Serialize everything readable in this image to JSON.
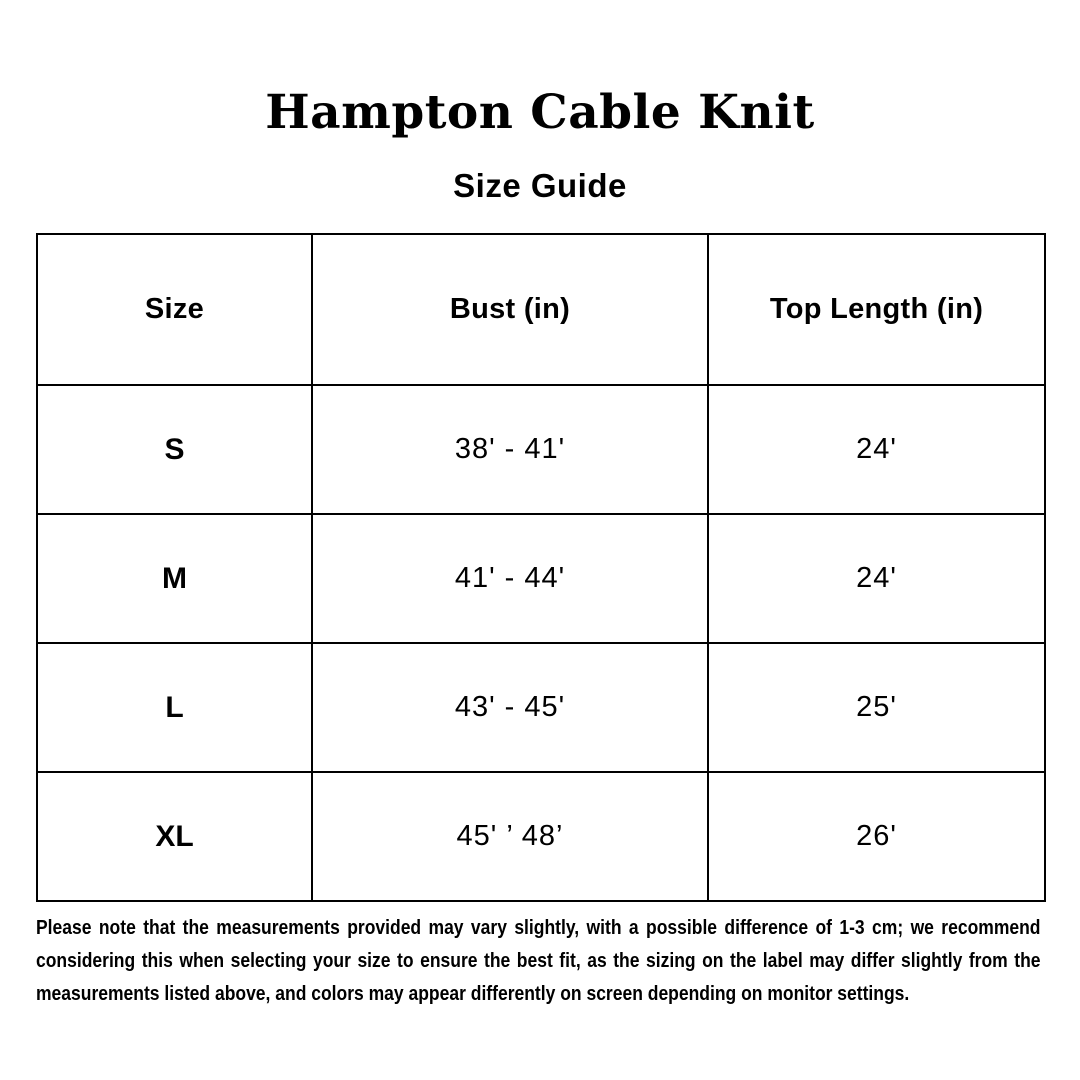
{
  "page": {
    "title": "Hampton Cable Knit",
    "subtitle": "Size Guide"
  },
  "table": {
    "columns": [
      "Size",
      "Bust (in)",
      "Top Length (in)"
    ],
    "rows": [
      {
        "size": "S",
        "bust": "38' - 41'",
        "top_length": "24'"
      },
      {
        "size": "M",
        "bust": "41' - 44'",
        "top_length": "24'"
      },
      {
        "size": "L",
        "bust": "43' - 45'",
        "top_length": "25'"
      },
      {
        "size": "XL",
        "bust": "45' ’ 48’",
        "top_length": "26'"
      }
    ]
  },
  "footer": {
    "note": "Please note that the measurements provided may vary slightly, with a possible difference of 1-3 cm; we recommend considering this when selecting your size to ensure the best fit, as the sizing on the label may differ slightly from the measurements listed above, and colors may appear differently on screen depending on monitor settings."
  },
  "chart_data": {
    "type": "table",
    "title": "Hampton Cable Knit Size Guide",
    "columns": [
      "Size",
      "Bust (in)",
      "Top Length (in)"
    ],
    "rows": [
      [
        "S",
        "38' - 41'",
        "24'"
      ],
      [
        "M",
        "41' - 44'",
        "24'"
      ],
      [
        "L",
        "43' - 45'",
        "25'"
      ],
      [
        "XL",
        "45' ’ 48’",
        "26'"
      ]
    ]
  },
  "colors": {
    "background": "#ffffff",
    "text": "#000000",
    "table_border": "#000000"
  }
}
